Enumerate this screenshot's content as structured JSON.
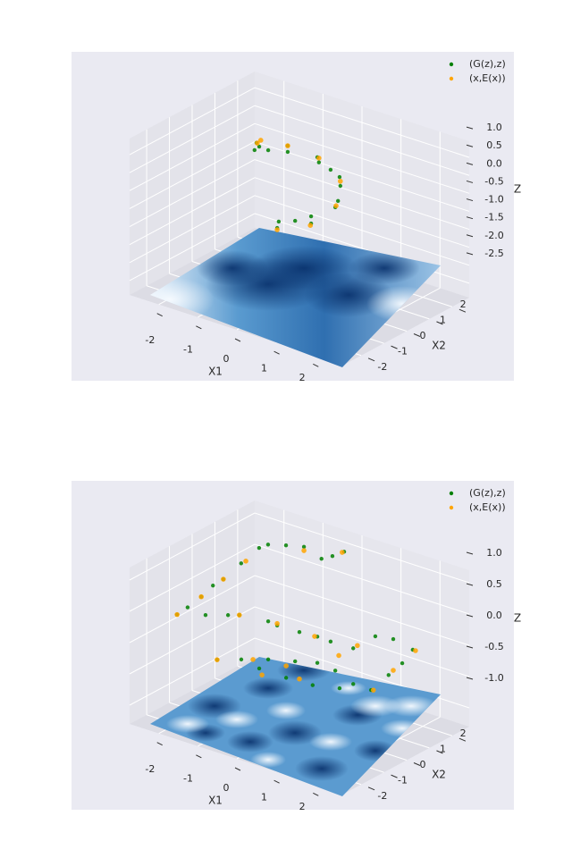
{
  "chart_data": [
    {
      "type": "scatter3d",
      "xlabel": "X1",
      "ylabel": "X2",
      "zlabel": "Z",
      "xlim": [
        -2.75,
        2.75
      ],
      "ylim": [
        -2.75,
        2.75
      ],
      "zlim": [
        -2.9,
        1.45
      ],
      "xticks": [
        -2,
        -1,
        0,
        1,
        2
      ],
      "yticks": [
        -2,
        -1,
        0,
        1,
        2
      ],
      "zticks": [
        {
          "value": 1.0,
          "label": "1.0"
        },
        {
          "value": 0.5,
          "label": "0.5"
        },
        {
          "value": 0.0,
          "label": "0.0"
        },
        {
          "value": -0.5,
          "label": "-0.5"
        },
        {
          "value": -1.0,
          "label": "-1.0"
        },
        {
          "value": -1.5,
          "label": "-1.5"
        },
        {
          "value": -2.0,
          "label": "-2.0"
        },
        {
          "value": -2.5,
          "label": "-2.5"
        }
      ],
      "legend": "upper right",
      "series": [
        {
          "name": "(G(z),z)",
          "color": "#008000",
          "x": [
            -1.15,
            -1.1,
            -1.03,
            -0.8,
            -0.3,
            -0.3,
            0.46,
            0.5,
            0.8,
            1.03,
            1.05,
            0.99,
            0.92,
            0.3,
            0.3,
            -0.11,
            -0.53,
            -0.57
          ],
          "y": [
            0,
            0,
            0,
            0,
            0,
            0,
            0,
            0,
            0,
            0,
            0,
            0,
            0,
            0,
            0,
            0,
            0,
            0
          ],
          "z": [
            0.76,
            0.98,
            0.9,
            0.88,
            1.18,
            1.01,
            1.13,
            1.0,
            0.9,
            0.78,
            0.54,
            0.1,
            -0.1,
            -0.57,
            -0.77,
            -0.84,
            -1.01,
            -1.2
          ]
        },
        {
          "name": "(x,E(x))",
          "color": "#ffa500",
          "x": [
            -1.08,
            -0.99,
            -0.3,
            0.5,
            1.05,
            0.94,
            0.28,
            -0.57
          ],
          "y": [
            0,
            0,
            0,
            0,
            0,
            0,
            0,
            0
          ],
          "z": [
            0.98,
            1.09,
            1.18,
            1.12,
            0.67,
            -0.05,
            -0.83,
            -1.25
          ]
        }
      ]
    },
    {
      "type": "scatter3d",
      "xlabel": "X1",
      "ylabel": "X2",
      "zlabel": "Z",
      "xlim": [
        -2.75,
        2.75
      ],
      "ylim": [
        -2.75,
        2.75
      ],
      "zlim": [
        -1.3,
        1.2
      ],
      "xticks": [
        -2,
        -1,
        0,
        1,
        2
      ],
      "yticks": [
        -2,
        -1,
        0,
        1,
        2
      ],
      "zticks": [
        {
          "value": 1.0,
          "label": "1.0"
        },
        {
          "value": 0.5,
          "label": "0.5"
        },
        {
          "value": 0.0,
          "label": "0.0"
        },
        {
          "value": -0.5,
          "label": "-0.5"
        },
        {
          "value": -1.0,
          "label": "-1.0"
        }
      ],
      "legend": "upper right",
      "series": [
        {
          "name": "(G(z),z)",
          "color": "#008000",
          "x": [
            -1.97,
            -1.7,
            -1.35,
            -1.05,
            -1.95,
            -2.66,
            -2.2,
            -1.97,
            -1.51,
            -1.05,
            -0.6,
            -0.32,
            -0.02,
            -1.24,
            -1.83,
            -1.54,
            -0.8,
            -0.57,
            0.0,
            0.46,
            0.8,
            1.38,
            0.78,
            1.24,
            1.74,
            1.47,
            1.12,
            0.67,
            -2.11,
            -1.49,
            -0.8,
            -0.11,
            0.46,
            0.92,
            1.38,
            -1.03,
            -0.34,
            0.34,
            1.03
          ],
          "y": [
            -2,
            -2,
            -2,
            -2,
            0,
            2,
            2,
            2,
            2,
            2,
            2,
            2,
            2,
            -2,
            0,
            0,
            0,
            0,
            0,
            0,
            0,
            0,
            2,
            2,
            2,
            2,
            2,
            2,
            0,
            0,
            0,
            0,
            0,
            0,
            0,
            0,
            0,
            0,
            0
          ],
          "z": [
            0.46,
            0.63,
            0.87,
            1.11,
            0.64,
            0.36,
            0.7,
            0.8,
            0.88,
            0.95,
            0.85,
            0.95,
            1.08,
            0.6,
            0.09,
            0.15,
            0.2,
            0.18,
            0.19,
            0.21,
            0.2,
            0.21,
            -0.11,
            -0.06,
            -0.13,
            -0.4,
            -0.66,
            -0.99,
            -0.68,
            -0.55,
            -0.41,
            -0.3,
            -0.21,
            -0.24,
            -0.36,
            -0.6,
            -0.61,
            -0.59,
            -0.5
          ]
        },
        {
          "name": "(x,E(x))",
          "color": "#ffa500",
          "x": [
            -1.97,
            -1.35,
            -1.95,
            -2.54,
            -1.05,
            -0.07,
            -1.54,
            -0.57,
            0.39,
            0.32,
            1.81,
            1.24,
            1.01,
            -2.11,
            -1.19,
            -0.34,
            -0.96,
            0.0,
            0.73
          ],
          "y": [
            -2,
            -2,
            0,
            2,
            2,
            2,
            0,
            0,
            0,
            2,
            2,
            2,
            0,
            0,
            0,
            0,
            0,
            0,
            2
          ],
          "z": [
            0.46,
            0.87,
            0.64,
            0.42,
            0.89,
            1.06,
            0.15,
            0.21,
            0.2,
            -0.35,
            -0.13,
            -0.56,
            0.02,
            -0.68,
            -0.49,
            -0.42,
            -0.69,
            -0.56,
            -0.98
          ]
        }
      ]
    }
  ]
}
